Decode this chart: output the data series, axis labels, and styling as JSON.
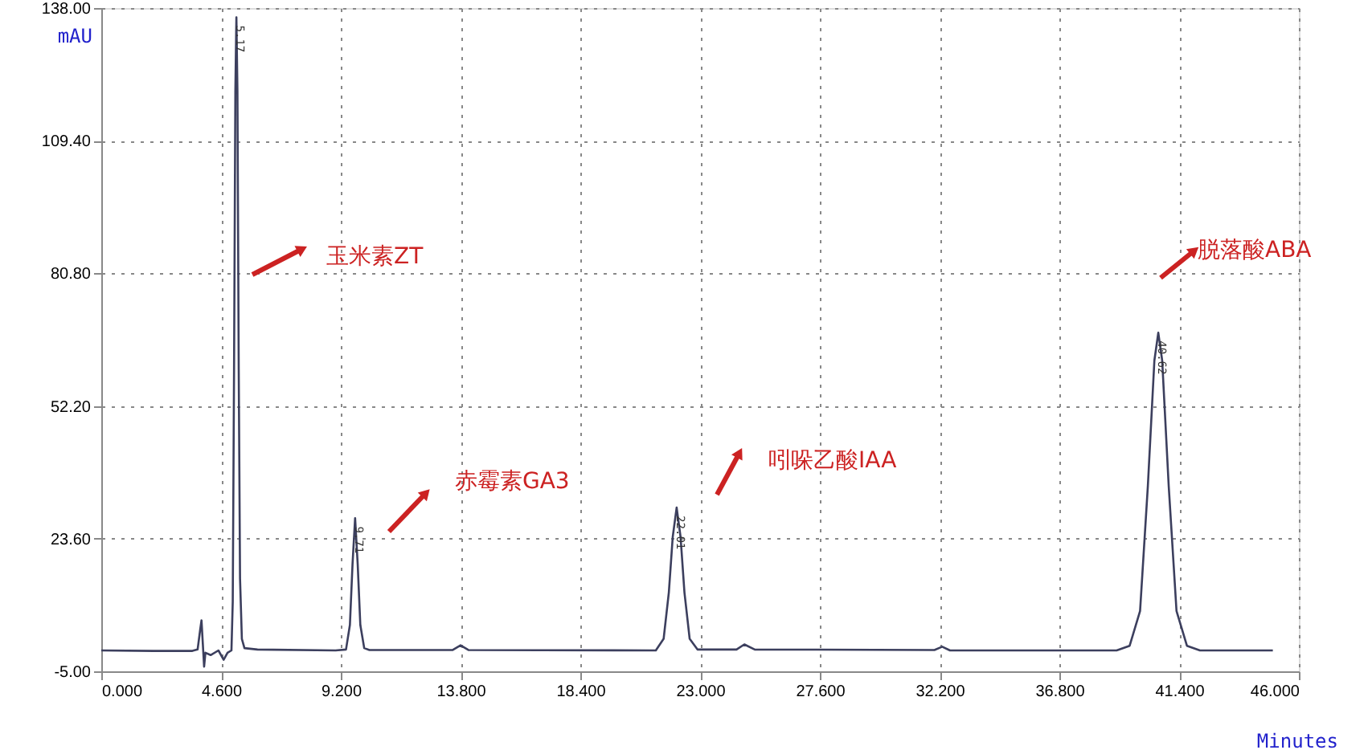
{
  "chart_data": {
    "type": "line",
    "xlabel": "Minutes",
    "ylabel": "mAU",
    "x": [
      0,
      2,
      3.5,
      3.7,
      3.8,
      3.85,
      3.9,
      3.95,
      4.0,
      4.2,
      4.5,
      4.7,
      4.85,
      5.0,
      5.05,
      5.1,
      5.15,
      5.19,
      5.23,
      5.28,
      5.33,
      5.4,
      5.5,
      6,
      9.0,
      9.4,
      9.55,
      9.65,
      9.75,
      9.85,
      9.95,
      10.1,
      10.3,
      13.5,
      13.8,
      14.1,
      21.3,
      21.6,
      21.8,
      21.95,
      22.1,
      22.25,
      22.4,
      22.6,
      22.9,
      24.4,
      24.7,
      25.1,
      32,
      32.3,
      32.6,
      39.0,
      39.5,
      39.9,
      40.2,
      40.45,
      40.6,
      40.75,
      41.0,
      41.3,
      41.7,
      42.2,
      45
    ],
    "series": [
      {
        "color": "#3c3f5e",
        "values": [
          -0.5,
          -0.6,
          -0.6,
          -0.3,
          4,
          6,
          1,
          -4,
          -1,
          -1.5,
          -0.5,
          -2.5,
          -1,
          -0.5,
          10,
          60,
          120,
          136,
          120,
          60,
          15,
          2,
          0,
          -0.3,
          -0.5,
          -0.3,
          5,
          18,
          28,
          18,
          5,
          0,
          -0.4,
          -0.4,
          0.6,
          -0.4,
          -0.5,
          2,
          12,
          24,
          30.3,
          24,
          12,
          2,
          -0.3,
          -0.3,
          0.8,
          -0.3,
          -0.4,
          0.3,
          -0.5,
          -0.5,
          0.5,
          8,
          35,
          62,
          68,
          62,
          35,
          8,
          0.5,
          -0.5,
          -0.5
        ]
      }
    ],
    "xlim": [
      0,
      46
    ],
    "ylim": [
      -5,
      138
    ],
    "xticks": [
      {
        "value": 0,
        "label": "0.000"
      },
      {
        "value": 4.6,
        "label": "4.600"
      },
      {
        "value": 9.2,
        "label": "9.200"
      },
      {
        "value": 13.8,
        "label": "13.800"
      },
      {
        "value": 18.4,
        "label": "18.400"
      },
      {
        "value": 23,
        "label": "23.000"
      },
      {
        "value": 27.6,
        "label": "27.600"
      },
      {
        "value": 32.2,
        "label": "32.200"
      },
      {
        "value": 36.8,
        "label": "36.800"
      },
      {
        "value": 41.4,
        "label": "41.400"
      },
      {
        "value": 46,
        "label": "46.000"
      }
    ],
    "yticks": [
      {
        "value": -5,
        "label": "-5.00"
      },
      {
        "value": 23.6,
        "label": "23.60"
      },
      {
        "value": 52.2,
        "label": "52.20"
      },
      {
        "value": 80.8,
        "label": "80.80"
      },
      {
        "value": 109.4,
        "label": "109.40"
      },
      {
        "value": 138,
        "label": "138.00"
      }
    ],
    "grid": true,
    "marker": "none",
    "line_style": "solid",
    "annotations": [
      "玉米素ZT",
      "赤霉素GA3",
      "吲哚乙酸IAA",
      "脱落酸ABA",
      {
        "text": "5.17",
        "x": 5.19,
        "y": 136
      },
      {
        "text": "9.71",
        "x": 9.75,
        "y": 28
      },
      {
        "text": "22.01",
        "x": 22.1,
        "y": 30.3
      },
      {
        "text": "40.62",
        "x": 40.6,
        "y": 68
      }
    ]
  }
}
